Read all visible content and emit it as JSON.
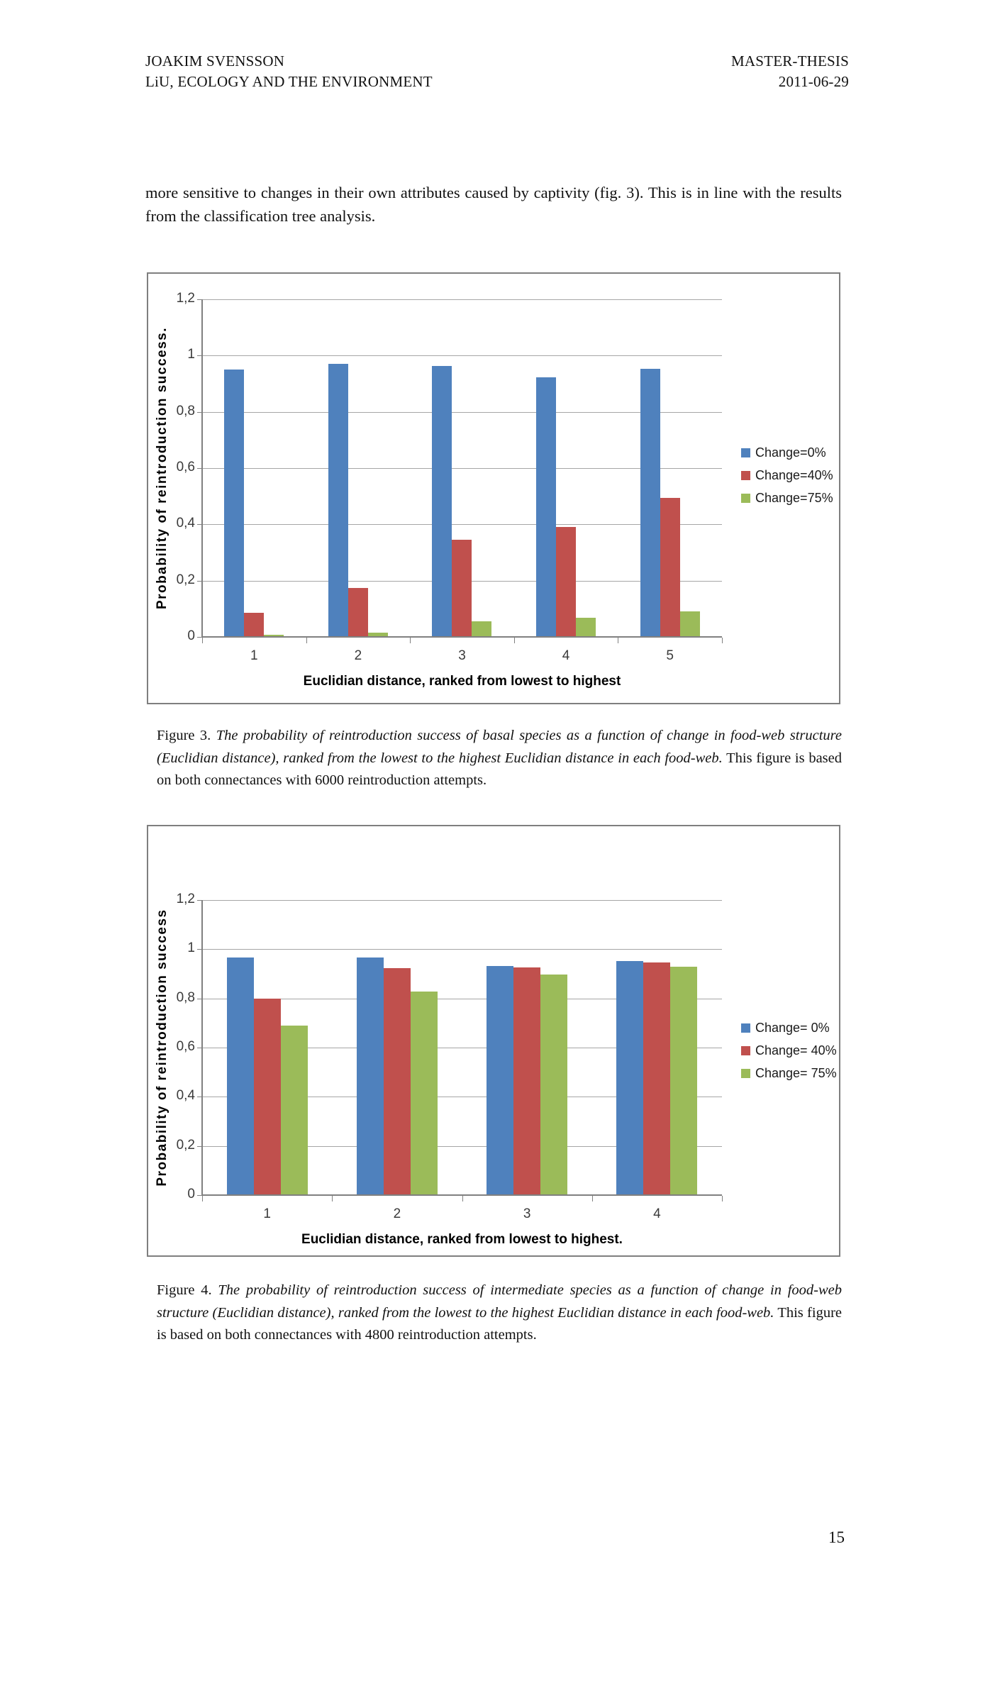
{
  "page": {
    "header": {
      "left_line1": "JOAKIM SVENSSON",
      "left_line2": "LiU, ECOLOGY AND THE ENVIRONMENT",
      "right_line1": "MASTER-THESIS",
      "right_line2": "2011-06-29"
    },
    "body_paragraph": "more sensitive to changes in their own attributes caused by captivity (fig. 3). This is in line with the results from the classification tree analysis.",
    "page_number": "15"
  },
  "figure3": {
    "caption_label": "Figure 3. ",
    "caption_italic": "The probability of reintroduction success of basal species as a function of change in food-web structure (Euclidian distance), ranked from the lowest to the highest Euclidian distance in each food-web.",
    "caption_rest": " This figure is based on both connectances with 6000 reintroduction attempts."
  },
  "figure4": {
    "caption_label": "Figure 4. ",
    "caption_italic": "The probability of reintroduction success of intermediate species as a function of change in food-web structure (Euclidian distance), ranked from the lowest to the highest Euclidian distance in each food-web.",
    "caption_rest": " This figure is based on both connectances with 4800 reintroduction attempts."
  },
  "chart_data": [
    {
      "type": "bar",
      "title": "",
      "categories": [
        "1",
        "2",
        "3",
        "4",
        "5"
      ],
      "series": [
        {
          "name": "Change=0%",
          "color": "#4F81BD",
          "values": [
            0.95,
            0.97,
            0.963,
            0.922,
            0.953
          ]
        },
        {
          "name": "Change=40%",
          "color": "#C0504D",
          "values": [
            0.085,
            0.175,
            0.345,
            0.39,
            0.495
          ]
        },
        {
          "name": "Change=75%",
          "color": "#9BBB59",
          "values": [
            0.008,
            0.015,
            0.055,
            0.068,
            0.09
          ]
        }
      ],
      "xlabel": "Euclidian distance, ranked from lowest to highest",
      "ylabel": "Probability of reintroduction success.",
      "ylim": [
        0,
        1.2
      ],
      "ytick_step": 0.2,
      "ytick_labels": [
        "0",
        "0,2",
        "0,4",
        "0,6",
        "0,8",
        "1",
        "1,2"
      ],
      "grid": true,
      "legend_position": "right"
    },
    {
      "type": "bar",
      "title": "",
      "categories": [
        "1",
        "2",
        "3",
        "4"
      ],
      "series": [
        {
          "name": "Change= 0%",
          "color": "#4F81BD",
          "values": [
            0.965,
            0.965,
            0.933,
            0.953
          ]
        },
        {
          "name": "Change= 40%",
          "color": "#C0504D",
          "values": [
            0.8,
            0.923,
            0.925,
            0.947
          ]
        },
        {
          "name": "Change= 75%",
          "color": "#9BBB59",
          "values": [
            0.69,
            0.827,
            0.898,
            0.93
          ]
        }
      ],
      "xlabel": "Euclidian distance, ranked from lowest to highest.",
      "ylabel": "Probability of reintroduction success",
      "ylim": [
        0,
        1.2
      ],
      "ytick_step": 0.2,
      "ytick_labels": [
        "0",
        "0,2",
        "0,4",
        "0,6",
        "0,8",
        "1",
        "1,2"
      ],
      "grid": true,
      "legend_position": "right"
    }
  ]
}
